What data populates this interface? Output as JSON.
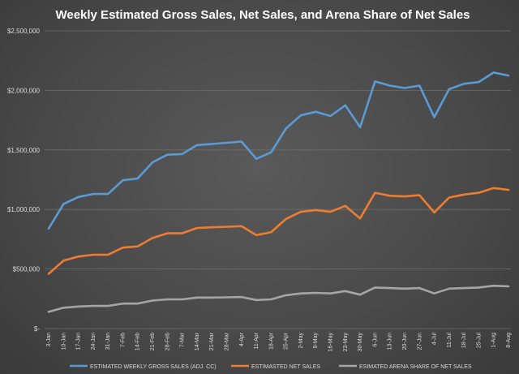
{
  "chart_data": {
    "type": "line",
    "title": "Weekly Estimated Gross Sales, Net Sales, and Arena Share of Net Sales",
    "xlabel": "",
    "ylabel": "",
    "ylim": [
      0,
      2500000
    ],
    "y_ticks": [
      {
        "value": 0,
        "label": "$-"
      },
      {
        "value": 500000,
        "label": "$500,000"
      },
      {
        "value": 1000000,
        "label": "$1,000,000"
      },
      {
        "value": 1500000,
        "label": "$1,500,000"
      },
      {
        "value": 2000000,
        "label": "$2,000,000"
      },
      {
        "value": 2500000,
        "label": "$2,500,000"
      }
    ],
    "grid": true,
    "legend_position": "bottom",
    "categories": [
      "3-Jan",
      "10-Jan",
      "17-Jan",
      "24-Jan",
      "31-Jan",
      "7-Feb",
      "14-Feb",
      "21-Feb",
      "28-Feb",
      "7-Mar",
      "14-Mar",
      "21-Mar",
      "28-Mar",
      "4-Apr",
      "11-Apr",
      "18-Apr",
      "25-Apr",
      "2-May",
      "9-May",
      "16-May",
      "23-May",
      "30-May",
      "6-Jun",
      "13-Jun",
      "20-Jun",
      "27-Jun",
      "4-Jul",
      "11-Jul",
      "18-Jul",
      "25-Jul",
      "1-Aug",
      "8-Aug"
    ],
    "series": [
      {
        "name": "ESTIMATED WEEKLY GROSS SALES (ADJ. CC)",
        "color": "#5b9bd5",
        "values": [
          840000,
          1045000,
          1105000,
          1130000,
          1130000,
          1245000,
          1260000,
          1395000,
          1460000,
          1465000,
          1540000,
          1550000,
          1560000,
          1570000,
          1425000,
          1480000,
          1680000,
          1790000,
          1820000,
          1785000,
          1875000,
          1690000,
          2075000,
          2040000,
          2020000,
          2040000,
          1775000,
          2010000,
          2055000,
          2070000,
          2150000,
          2125000
        ]
      },
      {
        "name": "ESTIMASTED NET SALES",
        "color": "#ed7d31",
        "values": [
          460000,
          570000,
          605000,
          620000,
          620000,
          680000,
          690000,
          760000,
          800000,
          800000,
          845000,
          850000,
          855000,
          860000,
          785000,
          810000,
          920000,
          980000,
          995000,
          980000,
          1030000,
          925000,
          1140000,
          1115000,
          1110000,
          1120000,
          975000,
          1100000,
          1125000,
          1140000,
          1180000,
          1165000
        ]
      },
      {
        "name": "ESIMATED ARENA SHARE OF NET SALES",
        "color": "#a5a5a5",
        "values": [
          140000,
          175000,
          185000,
          190000,
          190000,
          210000,
          210000,
          235000,
          245000,
          245000,
          260000,
          260000,
          262000,
          265000,
          240000,
          245000,
          280000,
          295000,
          300000,
          295000,
          315000,
          285000,
          345000,
          340000,
          335000,
          340000,
          295000,
          335000,
          340000,
          345000,
          360000,
          355000
        ]
      }
    ]
  }
}
